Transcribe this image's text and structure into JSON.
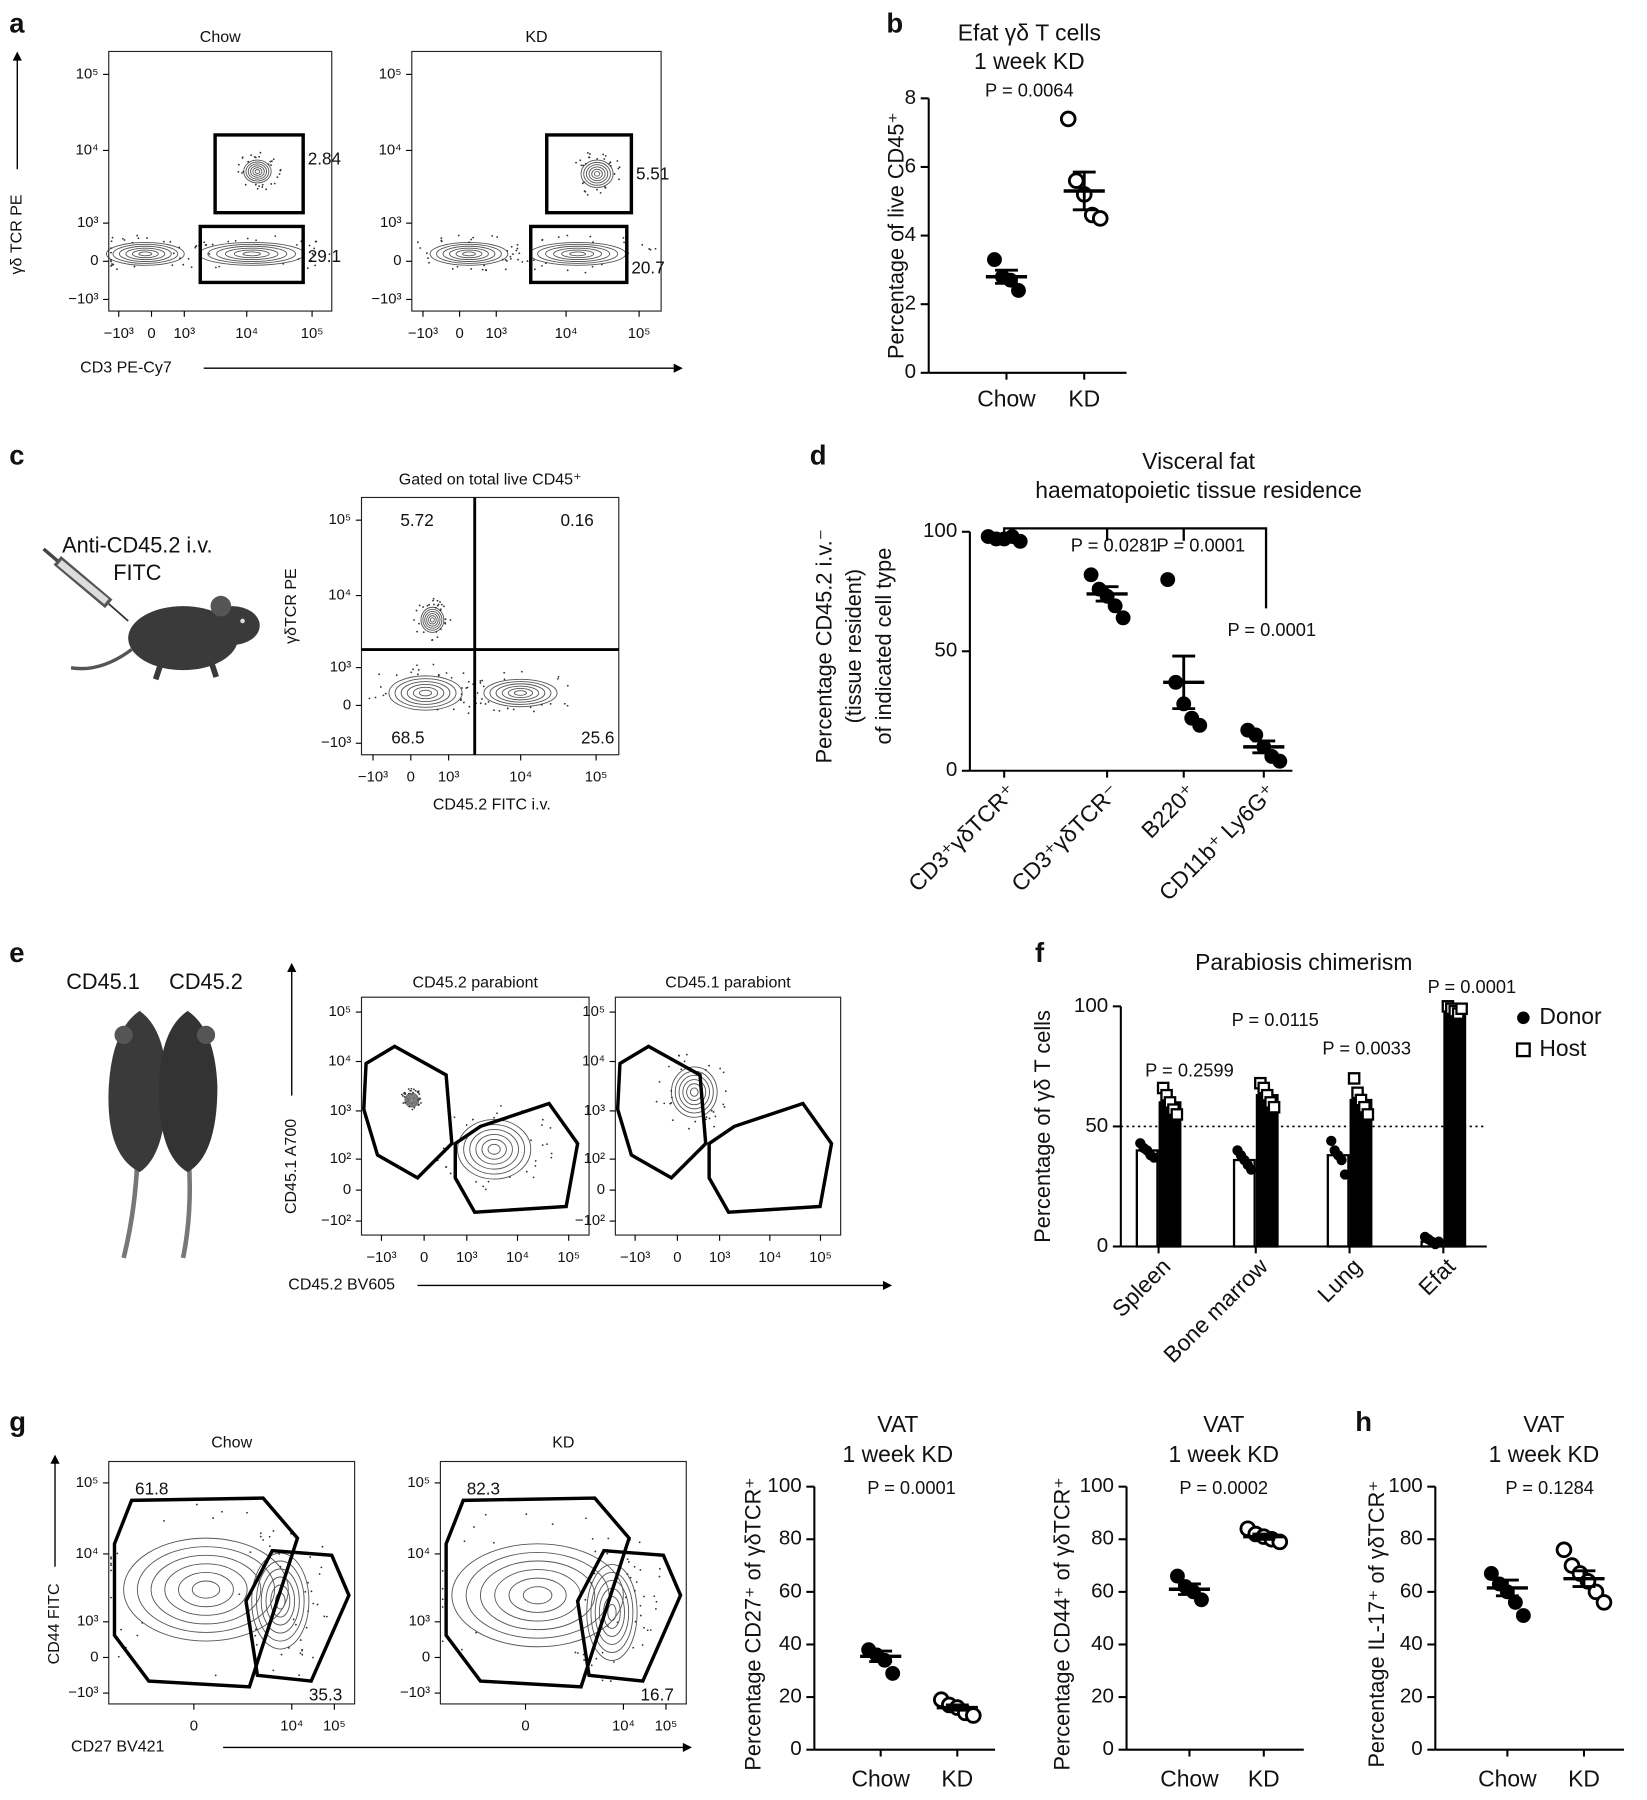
{
  "chart_data": [
    {
      "type": "flow",
      "panel": "a",
      "title": "Chow",
      "xlabel": "CD3 PE-Cy7",
      "ylabel": "γδ TCR PE",
      "xlim": [
        -1500,
        200000
      ],
      "ylim": [
        -1500,
        200000
      ],
      "xticks": [
        {
          "value": -1000,
          "label": "−10³"
        },
        0,
        {
          "value": 1000,
          "label": "10³"
        },
        {
          "value": 10000,
          "label": "10⁴"
        },
        {
          "value": 100000,
          "label": "10⁵"
        }
      ],
      "yticks": [
        {
          "value": -1000,
          "label": "−10³"
        },
        0,
        {
          "value": 1000,
          "label": "10³"
        },
        {
          "value": 10000,
          "label": "10⁴"
        },
        {
          "value": 100000,
          "label": "10⁵"
        }
      ],
      "gates": [
        2.84,
        29.1
      ]
    },
    {
      "type": "flow",
      "title": "KD",
      "xlim": [
        -1500,
        200000
      ],
      "ylim": [
        -1500,
        200000
      ],
      "xticks": [
        {
          "value": -1000,
          "label": "−10³"
        },
        0,
        {
          "value": 1000,
          "label": "10³"
        },
        {
          "value": 10000,
          "label": "10⁴"
        },
        {
          "value": 100000,
          "label": "10⁵"
        }
      ],
      "yticks": [
        {
          "value": -1000,
          "label": "−10³"
        },
        0,
        {
          "value": 1000,
          "label": "10³"
        },
        {
          "value": 10000,
          "label": "10⁴"
        },
        {
          "value": 100000,
          "label": "10⁵"
        }
      ],
      "gates": [
        5.51,
        20.7
      ]
    },
    {
      "type": "strip",
      "panel": "b",
      "title": "Efat γδ T cells",
      "subtitle": "1 week KD",
      "annotations": [
        "P = 0.0064"
      ],
      "ylabel": [
        "Percentage of live CD45⁺"
      ],
      "categories": [
        "Chow",
        "KD"
      ],
      "points": [
        [
          3.3,
          2.8,
          2.7,
          2.4
        ],
        [
          7.4,
          5.6,
          5.2,
          4.6,
          4.5
        ]
      ],
      "mean": [
        2.8,
        5.3
      ],
      "sem": [
        0.19,
        0.55
      ],
      "markers": [
        "filled",
        "open"
      ],
      "ylim": [
        0,
        8
      ],
      "yticks": [
        0,
        2,
        4,
        6,
        8
      ]
    },
    {
      "type": "flow",
      "panel": "c",
      "title": "Gated on total live CD45⁺",
      "annotations": [
        "Anti-CD45.2 i.v.",
        "FITC"
      ],
      "xlabel": "CD45.2 FITC i.v.",
      "ylabel": "γδTCR PE",
      "xlim": [
        -1500,
        200000
      ],
      "ylim": [
        -1500,
        200000
      ],
      "xticks": [
        {
          "value": -1000,
          "label": "−10³"
        },
        0,
        {
          "value": 1000,
          "label": "10³"
        },
        {
          "value": 10000,
          "label": "10⁴"
        },
        {
          "value": 100000,
          "label": "10⁵"
        }
      ],
      "yticks": [
        {
          "value": -1000,
          "label": "−10³"
        },
        0,
        {
          "value": 1000,
          "label": "10³"
        },
        {
          "value": 10000,
          "label": "10⁴"
        },
        {
          "value": 100000,
          "label": "10⁵"
        }
      ],
      "gates": [
        5.72,
        0.16,
        68.5,
        25.6
      ]
    },
    {
      "type": "strip",
      "panel": "d",
      "title": "Visceral fat",
      "subtitle": "haematopoietic tissue residence",
      "annotations": [
        "P = 0.0281",
        "P = 0.0001",
        "P = 0.0001"
      ],
      "ylabel": [
        "Percentage CD45.2 i.v.⁻",
        "(tissue resident)",
        "of indicated cell type"
      ],
      "categories": [
        "CD3⁺γδTCR⁺",
        "CD3⁺γδTCR⁻",
        "B220⁺",
        "CD11b⁺ Ly6G⁺"
      ],
      "points": [
        [
          98,
          97,
          97,
          98,
          96
        ],
        [
          82,
          76,
          73,
          69,
          64
        ],
        [
          80,
          37,
          28,
          22,
          19
        ],
        [
          17,
          15,
          10,
          6,
          4
        ]
      ],
      "mean": [
        97.5,
        74,
        37,
        10
      ],
      "sem": [
        0.4,
        3,
        11,
        2.5
      ],
      "markers": [
        "filled",
        "filled",
        "filled",
        "filled"
      ],
      "ylim": [
        0,
        100
      ],
      "yticks": [
        0,
        50,
        100
      ]
    },
    {
      "type": "flow",
      "panel": "e",
      "title": "CD45.2 parabiont",
      "annotations": [
        "CD45.1",
        "CD45.2"
      ],
      "xlabel": "CD45.2 BV605",
      "ylabel": "CD45.1 A700",
      "xlim": [
        -2500,
        250000
      ],
      "ylim": [
        -200,
        200000
      ],
      "xticks": [
        {
          "value": -1000,
          "label": "−10³"
        },
        0,
        {
          "value": 1000,
          "label": "10³"
        },
        {
          "value": 10000,
          "label": "10⁴"
        },
        {
          "value": 100000,
          "label": "10⁵"
        }
      ],
      "yticks": [
        {
          "value": -100,
          "label": "−10²"
        },
        0,
        {
          "value": 100,
          "label": "10²"
        },
        {
          "value": 1000,
          "label": "10³"
        },
        {
          "value": 10000,
          "label": "10⁴"
        },
        {
          "value": 100000,
          "label": "10⁵"
        }
      ]
    },
    {
      "type": "flow",
      "title": "CD45.1 parabiont",
      "xlim": [
        -2500,
        250000
      ],
      "ylim": [
        -200,
        200000
      ],
      "xticks": [
        {
          "value": -1000,
          "label": "−10³"
        },
        0,
        {
          "value": 1000,
          "label": "10³"
        },
        {
          "value": 10000,
          "label": "10⁴"
        },
        {
          "value": 100000,
          "label": "10⁵"
        }
      ],
      "yticks": [
        {
          "value": -100,
          "label": "−10²"
        },
        0,
        {
          "value": 100,
          "label": "10²"
        },
        {
          "value": 1000,
          "label": "10³"
        },
        {
          "value": 10000,
          "label": "10⁴"
        },
        {
          "value": 100000,
          "label": "10⁵"
        }
      ]
    },
    {
      "type": "bar",
      "panel": "f",
      "title": "Parabiosis chimerism",
      "ylabel": "Percentage of γδ T cells",
      "categories": [
        "Spleen",
        "Bone marrow",
        "Lung",
        "Efat"
      ],
      "series": [
        {
          "name": "Donor",
          "color": "#ffffff",
          "marker": "filled-circle",
          "values": [
            40,
            36,
            38,
            2
          ],
          "points": [
            [
              43,
              41,
              40,
              38,
              37
            ],
            [
              40,
              38,
              36,
              34,
              32
            ],
            [
              44,
              40,
              38,
              36,
              30
            ],
            [
              4,
              3,
              2,
              1,
              2
            ]
          ]
        },
        {
          "name": "Host",
          "color": "#000000",
          "marker": "open-square",
          "values": [
            60,
            63,
            61,
            98
          ],
          "points": [
            [
              66,
              63,
              60,
              57,
              55
            ],
            [
              68,
              66,
              63,
              60,
              58
            ],
            [
              70,
              64,
              61,
              58,
              55
            ],
            [
              100,
              99,
              98,
              97,
              99
            ]
          ]
        }
      ],
      "annotations": [
        "P = 0.2599",
        "P = 0.0115",
        "P = 0.0033",
        "P = 0.0001"
      ],
      "reference_line": 50,
      "legend": "upper right",
      "ylim": [
        0,
        100
      ],
      "yticks": [
        0,
        50,
        100
      ]
    },
    {
      "type": "flow",
      "panel": "g",
      "title": "Chow",
      "xlabel": "CD27 BV421",
      "ylabel": "CD44 FITC",
      "xlim": [
        -5000,
        300000
      ],
      "ylim": [
        -1500,
        200000
      ],
      "xticks": [
        0,
        {
          "value": 10000,
          "label": "10⁴"
        },
        {
          "value": 100000,
          "label": "10⁵"
        }
      ],
      "yticks": [
        {
          "value": -1000,
          "label": "−10³"
        },
        0,
        {
          "value": 1000,
          "label": "10³"
        },
        {
          "value": 10000,
          "label": "10⁴"
        },
        {
          "value": 100000,
          "label": "10⁵"
        }
      ],
      "gates": [
        61.8,
        35.3
      ]
    },
    {
      "type": "flow",
      "title": "KD",
      "xlim": [
        -5000,
        300000
      ],
      "ylim": [
        -1500,
        200000
      ],
      "xticks": [
        0,
        {
          "value": 10000,
          "label": "10⁴"
        },
        {
          "value": 100000,
          "label": "10⁵"
        }
      ],
      "yticks": [
        {
          "value": -1000,
          "label": "−10³"
        },
        0,
        {
          "value": 1000,
          "label": "10³"
        },
        {
          "value": 10000,
          "label": "10⁴"
        },
        {
          "value": 100000,
          "label": "10⁵"
        }
      ],
      "gates": [
        82.3,
        16.7
      ]
    },
    {
      "type": "strip",
      "title": "VAT",
      "subtitle": "1 week KD",
      "annotations": [
        "P = 0.0001"
      ],
      "ylabel": [
        "Percentage CD27⁺ of γδTCR⁺"
      ],
      "categories": [
        "Chow",
        "KD"
      ],
      "points": [
        [
          38,
          36,
          34,
          29
        ],
        [
          19,
          17,
          16,
          14,
          13
        ]
      ],
      "mean": [
        35.5,
        16
      ],
      "sem": [
        2,
        1
      ],
      "markers": [
        "filled",
        "open"
      ],
      "ylim": [
        0,
        100
      ],
      "yticks": [
        0,
        20,
        40,
        60,
        80,
        100
      ]
    },
    {
      "type": "strip",
      "title": "VAT",
      "subtitle": "1 week KD",
      "annotations": [
        "P = 0.0002"
      ],
      "ylabel": [
        "Percentage CD44⁺ of γδTCR⁺"
      ],
      "categories": [
        "Chow",
        "KD"
      ],
      "points": [
        [
          66,
          62,
          60,
          57
        ],
        [
          84,
          82,
          81,
          80,
          79
        ]
      ],
      "mean": [
        61,
        81
      ],
      "sem": [
        2,
        1
      ],
      "markers": [
        "filled",
        "open"
      ],
      "ylim": [
        0,
        100
      ],
      "yticks": [
        0,
        20,
        40,
        60,
        80,
        100
      ]
    },
    {
      "type": "strip",
      "panel": "h",
      "title": "VAT",
      "subtitle": "1 week KD",
      "annotations": [
        "P = 0.1284"
      ],
      "ylabel": [
        "Percentage IL-17⁺ of γδTCR⁺"
      ],
      "categories": [
        "Chow",
        "KD"
      ],
      "points": [
        [
          67,
          63,
          60,
          56,
          51
        ],
        [
          76,
          70,
          67,
          64,
          60,
          56
        ]
      ],
      "mean": [
        61.5,
        65
      ],
      "sem": [
        3,
        3
      ],
      "markers": [
        "filled",
        "open"
      ],
      "ylim": [
        0,
        100
      ],
      "yticks": [
        0,
        20,
        40,
        60,
        80,
        100
      ]
    }
  ]
}
